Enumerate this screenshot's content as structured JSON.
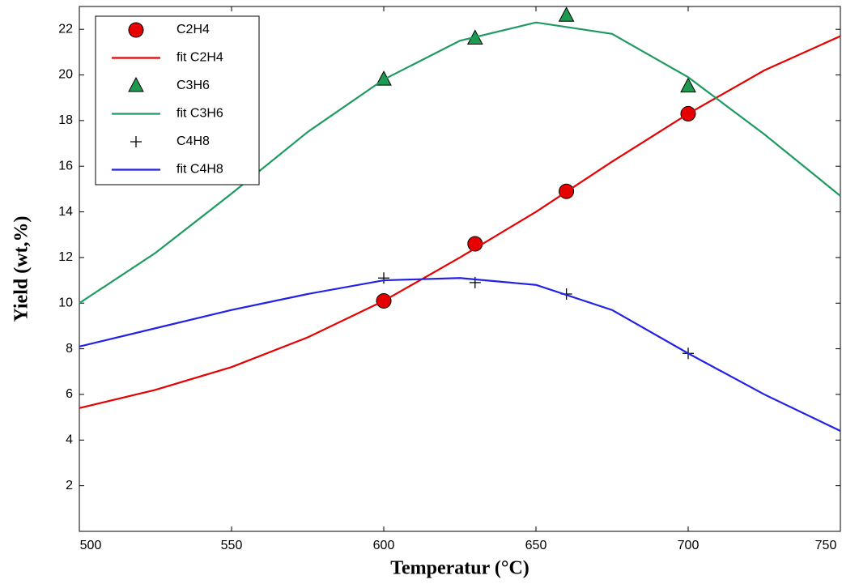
{
  "chart_data": {
    "type": "line",
    "xlabel": "Temperatur (°C)",
    "ylabel": "Yield (wt,%)",
    "xlim": [
      500,
      750
    ],
    "ylim": [
      0,
      23
    ],
    "xticks": [
      500,
      550,
      600,
      650,
      700,
      750
    ],
    "yticks": [
      2,
      4,
      6,
      8,
      10,
      12,
      14,
      16,
      18,
      20,
      22
    ],
    "legend": "upper left",
    "series": [
      {
        "name": "C2H4",
        "mode": "markers",
        "marker": "circle",
        "color": "#e60000",
        "x": [
          600,
          630,
          660,
          700
        ],
        "values": [
          10.1,
          12.6,
          14.9,
          18.3
        ]
      },
      {
        "name": "fit C2H4",
        "mode": "line",
        "color": "#e60000",
        "x": [
          500,
          525,
          550,
          575,
          600,
          625,
          650,
          675,
          700,
          725,
          750
        ],
        "values": [
          5.4,
          6.2,
          7.2,
          8.5,
          10.1,
          12.0,
          14.0,
          16.2,
          18.3,
          20.2,
          21.7
        ]
      },
      {
        "name": "C3H6",
        "mode": "markers",
        "marker": "triangle",
        "color": "#1e9a50",
        "x": [
          600,
          630,
          660,
          700
        ],
        "values": [
          19.8,
          21.6,
          22.6,
          19.5
        ]
      },
      {
        "name": "fit C3H6",
        "mode": "line",
        "color": "#1e9a60",
        "x": [
          500,
          525,
          550,
          575,
          600,
          625,
          650,
          675,
          700,
          725,
          750
        ],
        "values": [
          10.0,
          12.2,
          14.8,
          17.5,
          19.8,
          21.5,
          22.3,
          21.8,
          19.9,
          17.4,
          14.7
        ]
      },
      {
        "name": "C4H8",
        "mode": "markers",
        "marker": "plus",
        "color": "#000000",
        "x": [
          600,
          630,
          660,
          700
        ],
        "values": [
          11.1,
          10.9,
          10.4,
          7.8
        ]
      },
      {
        "name": "fit C4H8",
        "mode": "line",
        "color": "#2222e6",
        "x": [
          500,
          525,
          550,
          575,
          600,
          625,
          650,
          675,
          700,
          725,
          750
        ],
        "values": [
          8.1,
          8.9,
          9.7,
          10.4,
          11.0,
          11.1,
          10.8,
          9.7,
          7.8,
          6.0,
          4.4
        ]
      }
    ]
  }
}
